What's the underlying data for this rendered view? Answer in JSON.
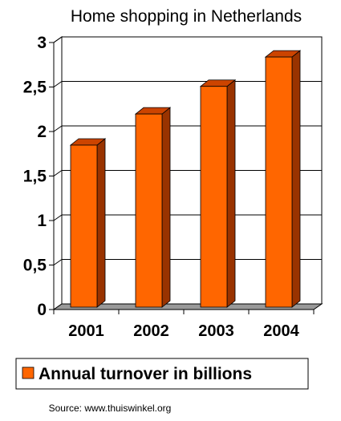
{
  "chart_data": {
    "type": "bar",
    "title": "Home shopping in Netherlands",
    "categories": [
      "2001",
      "2002",
      "2003",
      "2004"
    ],
    "series": [
      {
        "name": "Annual turnover in billions",
        "values": [
          1.82,
          2.17,
          2.48,
          2.81
        ]
      }
    ],
    "ylim": [
      0,
      3
    ],
    "yticks": [
      "0",
      "0,5",
      "1",
      "1,5",
      "2",
      "2,5",
      "3"
    ],
    "grid": true,
    "legend_position": "bottom",
    "colors": {
      "bar_front": "#ff6600",
      "bar_side": "#993300",
      "floor": "#999999"
    }
  },
  "source": "Source: www.thuiswinkel.org"
}
